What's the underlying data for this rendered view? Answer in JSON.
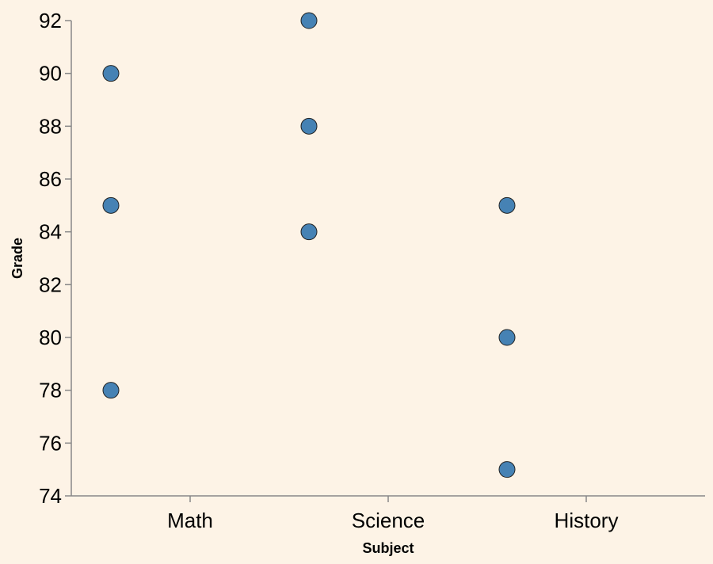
{
  "chart_data": {
    "type": "scatter",
    "title": "",
    "xlabel": "Subject",
    "ylabel": "Grade",
    "categories": [
      "Math",
      "Science",
      "History"
    ],
    "ylim": [
      74,
      92
    ],
    "yticks": [
      "74",
      "76",
      "78",
      "80",
      "82",
      "84",
      "86",
      "88",
      "90",
      "92"
    ],
    "grid": false,
    "point_color": "#4682b4",
    "background": "#fdf3e6",
    "points": [
      {
        "x": "Math",
        "y": 90
      },
      {
        "x": "Math",
        "y": 85
      },
      {
        "x": "Math",
        "y": 78
      },
      {
        "x": "Science",
        "y": 92
      },
      {
        "x": "Science",
        "y": 88
      },
      {
        "x": "Science",
        "y": 84
      },
      {
        "x": "History",
        "y": 85
      },
      {
        "x": "History",
        "y": 80
      },
      {
        "x": "History",
        "y": 75
      }
    ]
  }
}
